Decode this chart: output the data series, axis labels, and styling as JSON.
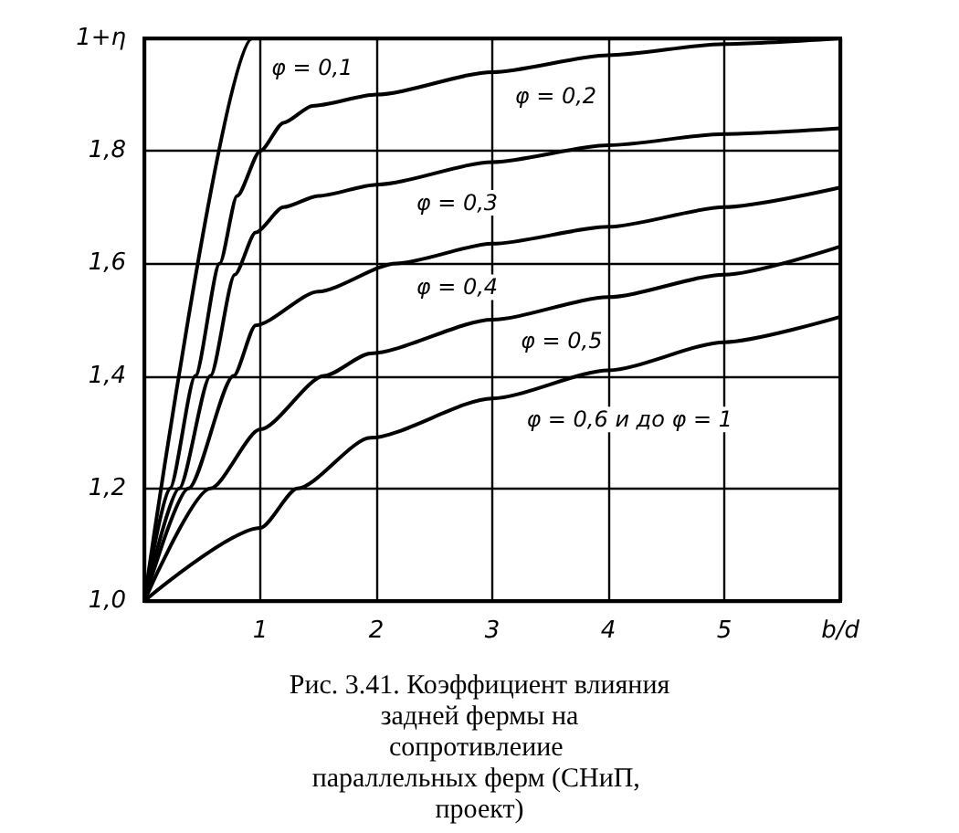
{
  "chart_data": {
    "type": "line",
    "title": "Рис. 3.41. Коэффициент влияния задней фермы на сопротивлеиие параллельных ферм (СНиП, проект)",
    "xlabel": "b/d",
    "ylabel": "1+η",
    "xlim": [
      0,
      6
    ],
    "xticks": [
      {
        "value": 0,
        "label": null
      },
      1,
      2,
      3,
      4,
      5,
      {
        "value": 6,
        "label": null
      }
    ],
    "ylim": [
      1,
      2
    ],
    "yticks": [
      {
        "value": 1,
        "label": "1,0"
      },
      {
        "value": 1.2,
        "label": "1,2"
      },
      {
        "value": 1.4,
        "label": "1,4"
      },
      {
        "value": 1.6,
        "label": "1,6"
      },
      {
        "value": 1.8,
        "label": "1,8"
      },
      {
        "value": 2,
        "label": null
      }
    ],
    "grid": true,
    "marker": "none",
    "line_style": "solid",
    "series": [
      {
        "color": "#000000",
        "x": [
          0,
          0.93,
          6
        ],
        "values": [
          1,
          2,
          2
        ]
      },
      {
        "color": "#000000",
        "x": [
          0,
          0.22,
          0.44,
          0.65,
          0.8,
          1,
          1.2,
          1.45,
          2,
          3,
          4,
          5,
          6
        ],
        "values": [
          1,
          1.2,
          1.4,
          1.6,
          1.72,
          1.8,
          1.85,
          1.88,
          1.9,
          1.94,
          1.97,
          1.99,
          2
        ]
      },
      {
        "color": "#000000",
        "x": [
          0,
          0.3,
          0.57,
          0.78,
          0.96,
          1.2,
          1.5,
          2,
          3,
          4,
          5,
          6
        ],
        "values": [
          1,
          1.2,
          1.4,
          1.58,
          1.655,
          1.7,
          1.72,
          1.74,
          1.78,
          1.81,
          1.83,
          1.84
        ]
      },
      {
        "color": "#000000",
        "x": [
          0,
          0.38,
          0.77,
          0.96,
          1.5,
          2.17,
          3,
          4,
          5,
          6
        ],
        "values": [
          1,
          1.2,
          1.4,
          1.49,
          1.55,
          1.6,
          1.635,
          1.665,
          1.7,
          1.735
        ]
      },
      {
        "color": "#000000",
        "x": [
          0,
          0.57,
          1,
          1.55,
          1.95,
          3,
          4,
          5,
          6
        ],
        "values": [
          1,
          1.2,
          1.305,
          1.4,
          1.44,
          1.5,
          1.54,
          1.58,
          1.63
        ]
      },
      {
        "color": "#000000",
        "x": [
          0,
          1,
          1.32,
          1.95,
          3,
          4,
          5,
          6
        ],
        "values": [
          1,
          1.13,
          1.2,
          1.29,
          1.36,
          1.41,
          1.46,
          1.505
        ]
      }
    ],
    "annotations": [
      {
        "text": "φ = 0,1",
        "x": 1.0,
        "y": 1.99
      },
      {
        "text": "φ = 0,2",
        "x": 3.1,
        "y": 1.94
      },
      {
        "text": "φ = 0,3",
        "x": 2.25,
        "y": 1.75
      },
      {
        "text": "φ = 0,4",
        "x": 2.25,
        "y": 1.6
      },
      {
        "text": "φ = 0,5",
        "x": 3.15,
        "y": 1.505
      },
      {
        "text": "φ = 0,6 и до φ = 1",
        "x": 3.2,
        "y": 1.365
      }
    ]
  }
}
